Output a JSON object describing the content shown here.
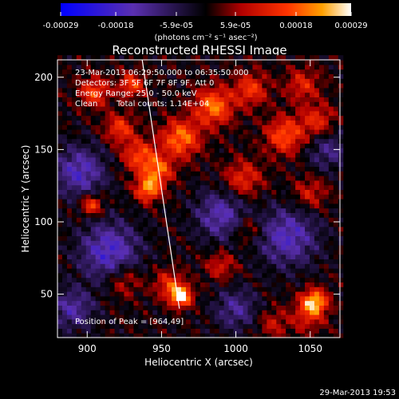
{
  "chart_data": {
    "type": "heatmap",
    "title": "Reconstructed RHESSI Image",
    "xlabel": "Heliocentric X (arcsec)",
    "ylabel": "Heliocentric Y (arcsec)",
    "xlim": [
      880,
      1070
    ],
    "ylim": [
      20,
      212
    ],
    "x_ticks": [
      900,
      950,
      1000,
      1050
    ],
    "y_ticks": [
      50,
      100,
      150,
      200
    ],
    "x_tick_labels": [
      "900",
      "950",
      "1000",
      "1050"
    ],
    "y_tick_labels": [
      "50",
      "100",
      "150",
      "200"
    ],
    "colorbar": {
      "range": [
        -0.00029,
        0.00029
      ],
      "ticks": [
        -0.00029,
        -0.00018,
        -5.9e-05,
        5.9e-05,
        0.00018,
        0.00029
      ],
      "tick_labels": [
        "-0.00029",
        "-0.00018",
        "-5.9e-05",
        "5.9e-05",
        "0.00018",
        "0.00029"
      ],
      "unit_label": "(photons cm⁻² s⁻¹ asec⁻²)"
    },
    "annotations": {
      "time_range": "23-Mar-2013 06:29:50.000 to 06:35:50.000",
      "detectors": "Detectors: 3F 5F 6F 7F 8F 9F, Att 0",
      "energy_range": "Energy Range: 25.0 - 50.0 keV",
      "method": "Clean",
      "total_counts": "Total counts: 1.14E+04",
      "peak": "Position of Peak = [964,49]"
    },
    "peak_position": [
      964,
      49
    ],
    "limb_line": {
      "x1": 937,
      "y1": 212,
      "x2": 962,
      "y2": 40
    },
    "hot_spots": [
      {
        "x": 963,
        "y": 49,
        "amp": 1.0,
        "sigma": 5
      },
      {
        "x": 955,
        "y": 57,
        "amp": 0.45,
        "sigma": 7
      },
      {
        "x": 1053,
        "y": 45,
        "amp": 0.85,
        "sigma": 6
      },
      {
        "x": 1048,
        "y": 35,
        "amp": 0.35,
        "sigma": 8
      },
      {
        "x": 903,
        "y": 112,
        "amp": 0.6,
        "sigma": 5
      },
      {
        "x": 941,
        "y": 123,
        "amp": 0.75,
        "sigma": 6
      },
      {
        "x": 948,
        "y": 136,
        "amp": 0.6,
        "sigma": 7
      },
      {
        "x": 935,
        "y": 146,
        "amp": 0.55,
        "sigma": 8
      },
      {
        "x": 963,
        "y": 158,
        "amp": 0.7,
        "sigma": 9
      },
      {
        "x": 922,
        "y": 165,
        "amp": 0.5,
        "sigma": 7
      },
      {
        "x": 905,
        "y": 190,
        "amp": 0.55,
        "sigma": 7
      },
      {
        "x": 930,
        "y": 195,
        "amp": 0.55,
        "sigma": 6
      },
      {
        "x": 985,
        "y": 180,
        "amp": 0.7,
        "sigma": 9
      },
      {
        "x": 1010,
        "y": 192,
        "amp": 0.5,
        "sigma": 8
      },
      {
        "x": 1033,
        "y": 160,
        "amp": 0.6,
        "sigma": 9
      },
      {
        "x": 1055,
        "y": 170,
        "amp": 0.45,
        "sigma": 8
      },
      {
        "x": 1045,
        "y": 195,
        "amp": 0.4,
        "sigma": 8
      },
      {
        "x": 1005,
        "y": 130,
        "amp": 0.45,
        "sigma": 9
      },
      {
        "x": 1050,
        "y": 120,
        "amp": 0.35,
        "sigma": 8
      },
      {
        "x": 925,
        "y": 60,
        "amp": 0.35,
        "sigma": 8
      },
      {
        "x": 990,
        "y": 70,
        "amp": 0.35,
        "sigma": 7
      },
      {
        "x": 1025,
        "y": 30,
        "amp": 0.3,
        "sigma": 7
      },
      {
        "x": 1008,
        "y": 95,
        "amp": 0.3,
        "sigma": 7
      }
    ],
    "cold_spots": [
      {
        "x": 895,
        "y": 135,
        "amp": 0.55,
        "sigma": 12
      },
      {
        "x": 915,
        "y": 80,
        "amp": 0.6,
        "sigma": 14
      },
      {
        "x": 990,
        "y": 105,
        "amp": 0.5,
        "sigma": 12
      },
      {
        "x": 1035,
        "y": 90,
        "amp": 0.55,
        "sigma": 14
      },
      {
        "x": 890,
        "y": 40,
        "amp": 0.45,
        "sigma": 10
      },
      {
        "x": 1000,
        "y": 40,
        "amp": 0.4,
        "sigma": 10
      },
      {
        "x": 1062,
        "y": 150,
        "amp": 0.35,
        "sigma": 10
      }
    ]
  },
  "footer_timestamp": "29-Mar-2013 19:53",
  "colors": {
    "background": "#000000",
    "colormap": [
      "#0000ff",
      "#4b2bc4",
      "#5f2fa8",
      "#000000",
      "#b00000",
      "#ff3300",
      "#ff9900",
      "#ffffff"
    ]
  }
}
